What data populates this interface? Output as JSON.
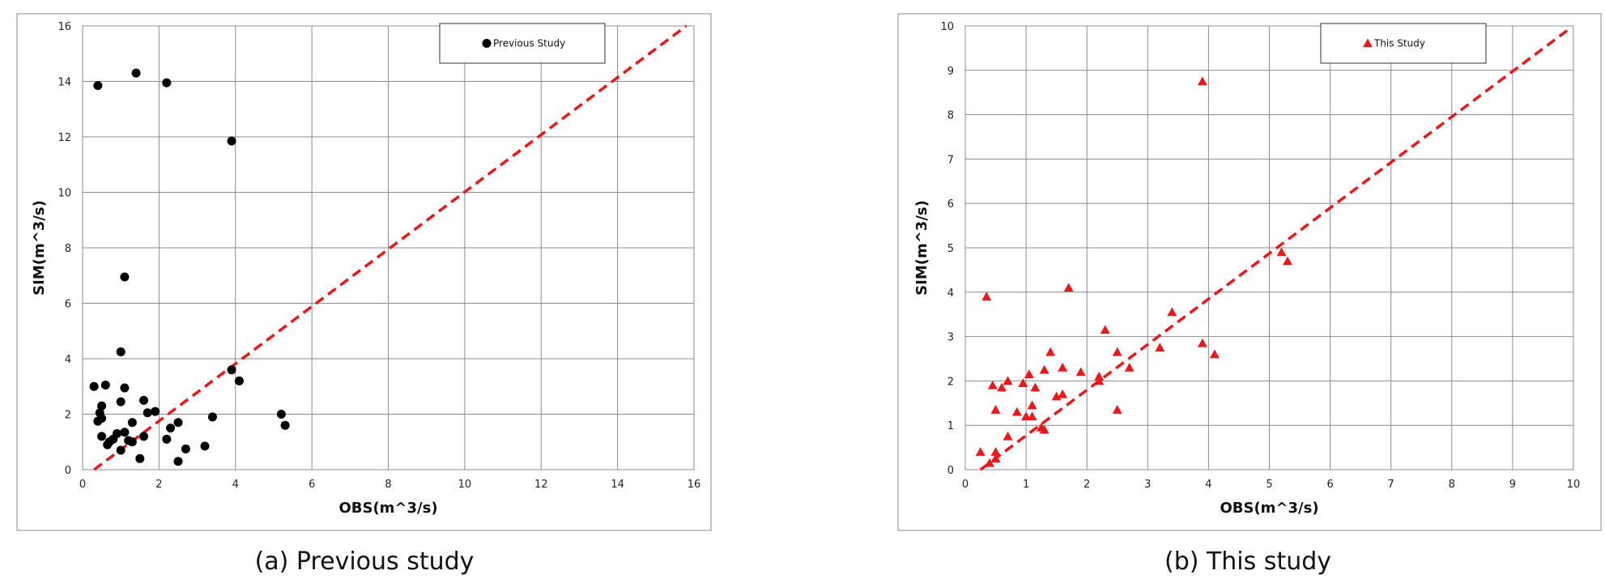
{
  "chart_data": [
    {
      "type": "scatter",
      "caption": "(a) Previous study",
      "xlabel": "OBS(m^3/s)",
      "ylabel": "SIM(m^3/s)",
      "xlim": [
        0,
        16
      ],
      "ylim": [
        0,
        16
      ],
      "xticks": [
        0,
        2,
        4,
        6,
        8,
        10,
        12,
        14,
        16
      ],
      "yticks": [
        0,
        2,
        4,
        6,
        8,
        10,
        12,
        14,
        16
      ],
      "grid": true,
      "legend_position": "top-right",
      "marker": "circle",
      "color": "#000000",
      "reference_line": {
        "style": "dashed",
        "color": "#e8191c",
        "from": [
          0.3,
          0
        ],
        "to": [
          15.8,
          16
        ]
      },
      "series": [
        {
          "name": "Previous Study",
          "points": [
            [
              0.4,
              13.85
            ],
            [
              1.4,
              14.3
            ],
            [
              2.2,
              13.95
            ],
            [
              3.9,
              11.85
            ],
            [
              1.1,
              6.95
            ],
            [
              1.0,
              4.25
            ],
            [
              3.9,
              3.6
            ],
            [
              4.1,
              3.2
            ],
            [
              0.3,
              3.0
            ],
            [
              0.6,
              3.05
            ],
            [
              1.1,
              2.95
            ],
            [
              1.6,
              2.5
            ],
            [
              1.0,
              2.45
            ],
            [
              0.5,
              2.3
            ],
            [
              0.4,
              1.75
            ],
            [
              0.5,
              1.85
            ],
            [
              0.45,
              2.05
            ],
            [
              1.9,
              2.1
            ],
            [
              1.7,
              2.05
            ],
            [
              3.4,
              1.9
            ],
            [
              5.2,
              2.0
            ],
            [
              5.3,
              1.6
            ],
            [
              1.3,
              1.7
            ],
            [
              2.5,
              1.7
            ],
            [
              2.3,
              1.5
            ],
            [
              1.1,
              1.35
            ],
            [
              0.9,
              1.3
            ],
            [
              0.8,
              1.1
            ],
            [
              0.7,
              1.0
            ],
            [
              0.65,
              0.9
            ],
            [
              0.5,
              1.2
            ],
            [
              1.3,
              1.0
            ],
            [
              1.2,
              1.05
            ],
            [
              1.6,
              1.2
            ],
            [
              2.2,
              1.1
            ],
            [
              1.0,
              0.7
            ],
            [
              2.7,
              0.75
            ],
            [
              3.2,
              0.85
            ],
            [
              1.5,
              0.4
            ],
            [
              2.5,
              0.3
            ]
          ]
        }
      ]
    },
    {
      "type": "scatter",
      "caption": "(b) This study",
      "xlabel": "OBS(m^3/s)",
      "ylabel": "SIM(m^3/s)",
      "xlim": [
        0,
        10
      ],
      "ylim": [
        0,
        10
      ],
      "xticks": [
        0,
        1,
        2,
        3,
        4,
        5,
        6,
        7,
        8,
        9,
        10
      ],
      "yticks": [
        0,
        1,
        2,
        3,
        4,
        5,
        6,
        7,
        8,
        9,
        10
      ],
      "grid": true,
      "legend_position": "top-right",
      "marker": "triangle",
      "color": "#e8191c",
      "reference_line": {
        "style": "dashed",
        "color": "#e8191c",
        "from": [
          0.25,
          0
        ],
        "to": [
          9.9,
          9.9
        ]
      },
      "series": [
        {
          "name": "This Study",
          "points": [
            [
              3.9,
              8.75
            ],
            [
              5.2,
              4.9
            ],
            [
              5.3,
              4.7
            ],
            [
              1.7,
              4.1
            ],
            [
              0.35,
              3.9
            ],
            [
              3.4,
              3.55
            ],
            [
              2.3,
              3.15
            ],
            [
              3.9,
              2.85
            ],
            [
              3.2,
              2.75
            ],
            [
              4.1,
              2.6
            ],
            [
              1.4,
              2.65
            ],
            [
              2.5,
              2.65
            ],
            [
              1.6,
              2.3
            ],
            [
              2.7,
              2.3
            ],
            [
              1.3,
              2.25
            ],
            [
              1.9,
              2.2
            ],
            [
              2.2,
              2.1
            ],
            [
              2.2,
              2.0
            ],
            [
              1.05,
              2.15
            ],
            [
              0.7,
              2.0
            ],
            [
              0.95,
              1.95
            ],
            [
              0.6,
              1.85
            ],
            [
              0.45,
              1.9
            ],
            [
              1.15,
              1.85
            ],
            [
              1.5,
              1.65
            ],
            [
              1.6,
              1.7
            ],
            [
              0.5,
              1.35
            ],
            [
              0.85,
              1.3
            ],
            [
              1.1,
              1.45
            ],
            [
              1.0,
              1.2
            ],
            [
              1.1,
              1.2
            ],
            [
              2.5,
              1.35
            ],
            [
              1.25,
              0.95
            ],
            [
              1.3,
              0.9
            ],
            [
              0.7,
              0.75
            ],
            [
              0.25,
              0.4
            ],
            [
              0.5,
              0.4
            ],
            [
              0.5,
              0.25
            ],
            [
              0.4,
              0.15
            ]
          ]
        }
      ]
    }
  ]
}
